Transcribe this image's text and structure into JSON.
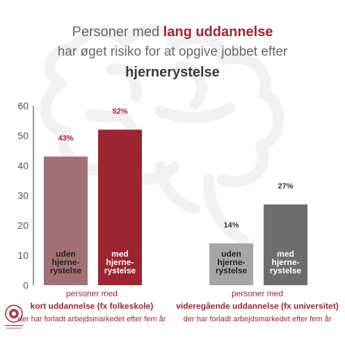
{
  "title": {
    "line1_prefix": "Personer med ",
    "line1_highlight": "lang uddannelse",
    "line2": "har øget risiko for at opgive jobbet efter",
    "line3": "hjernerystelse"
  },
  "colors": {
    "short_without": "#a17074",
    "short_with": "#9b2530",
    "long_without": "#a6a6a6",
    "long_with": "#6d6d6d",
    "accent": "#9b2530",
    "text": "#666666",
    "watermark": "#f2f2f2"
  },
  "watermark_icon": "brain-icon",
  "logo_icon": "university-seal-icon",
  "chart_data": {
    "type": "bar",
    "ylim": [
      0,
      60
    ],
    "yticks": [
      0,
      10,
      20,
      30,
      40,
      50,
      60
    ],
    "grid": false,
    "groups": [
      {
        "label_top": "personer med",
        "label_main": "kort uddannelse (fx folkeskole)",
        "label_sub": "der har forladt arbejdsmarkedet  efter fem år",
        "bars": [
          {
            "name": "uden hjerne-rystelse",
            "lines": [
              "uden",
              "hjerne-",
              "rystelse"
            ],
            "value": 43,
            "label": "43%",
            "color_key": "short_without"
          },
          {
            "name": "med hjerne-rystelse",
            "lines": [
              "med",
              "hjerne-",
              "rystelse"
            ],
            "value": 52,
            "label": "52%",
            "color_key": "short_with"
          }
        ]
      },
      {
        "label_top": "personer med",
        "label_main": "videregående uddannelse (fx universitet)",
        "label_sub": "der har forladt arbejdsmarkedet  efter fem år",
        "bars": [
          {
            "name": "uden hjerne-rystelse",
            "lines": [
              "uden",
              "hjerne-",
              "rystelse"
            ],
            "value": 14,
            "label": "14%",
            "color_key": "long_without"
          },
          {
            "name": "med hjerne-rystelse",
            "lines": [
              "med",
              "hjerne-",
              "rystelse"
            ],
            "value": 27,
            "label": "27%",
            "color_key": "long_with"
          }
        ]
      }
    ]
  }
}
